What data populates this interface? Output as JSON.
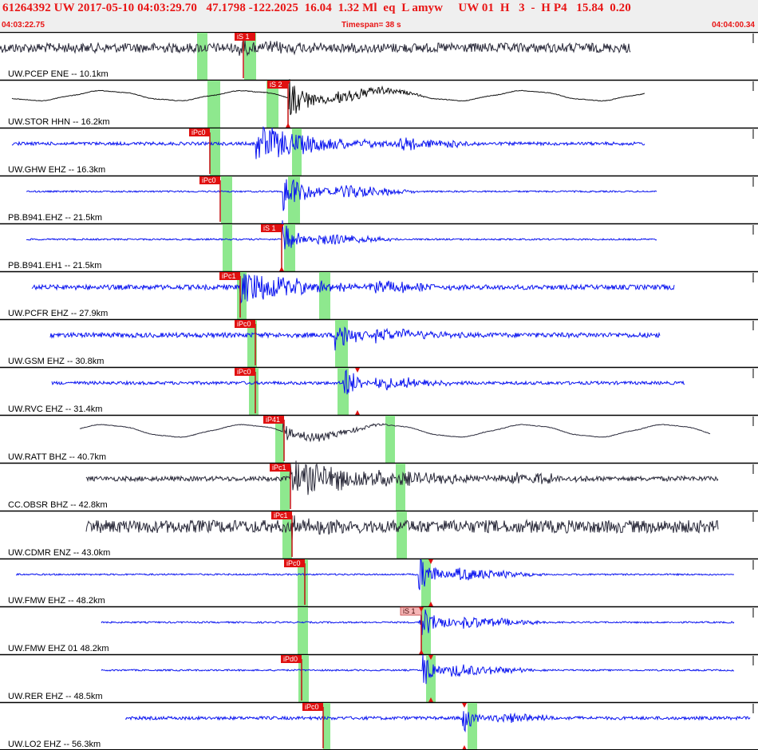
{
  "header": {
    "title": "61264392 UW 2017-05-10 04:03:29.70   47.1798 -122.2025  16.04  1.32 Ml  eq  L amyw     UW 01  H   3  -  H P4   15.84  0.20",
    "start_time": "04:03:22.75",
    "timespan": "Timespan=  38 s",
    "end_time": "04:04:00.34"
  },
  "colors": {
    "header_text": "#e81515",
    "pick_box": "#e01010",
    "pick_box_light": "#f6b6b6",
    "window": "#8ee88e",
    "trace_blue": "#0a14f0",
    "trace_dark": "#2a2a3a"
  },
  "traces": [
    {
      "label": "UW.PCEP ENE -- 10.1km",
      "color": "dark",
      "start": 0,
      "end": 790,
      "amp": 6,
      "noise": true,
      "windows": [
        [
          247,
          260
        ],
        [
          306,
          321
        ]
      ],
      "picks": [
        {
          "x": 320,
          "label": "iS 1",
          "wide": true
        }
      ],
      "arrival": 305,
      "event": [
        300,
        330
      ],
      "event_amp": 12
    },
    {
      "label": "UW.STOR HHN -- 16.2km",
      "color": "black",
      "start": 15,
      "end": 808,
      "amp": 4,
      "noise": false,
      "windows": [
        [
          260,
          276
        ],
        [
          334,
          349
        ]
      ],
      "picks": [
        {
          "x": 361,
          "label": "iS 2",
          "wide": true,
          "tri": true
        }
      ],
      "arrival": 361,
      "event": [
        362,
        420
      ],
      "event_amp": 26
    },
    {
      "label": "UW.GHW EHZ -- 16.3km",
      "color": "blue",
      "start": 15,
      "end": 808,
      "amp": 2,
      "noise": true,
      "windows": [
        [
          263,
          276
        ],
        [
          366,
          378
        ]
      ],
      "picks": [
        {
          "x": 263,
          "label": "iPc0",
          "wide": false
        }
      ],
      "arrival": 263,
      "event": [
        320,
        500
      ],
      "event_amp": 24
    },
    {
      "label": "PB.B941.EHZ -- 21.5km",
      "color": "blue",
      "start": 33,
      "end": 823,
      "amp": 1,
      "noise": true,
      "windows": [
        [
          277,
          291
        ],
        [
          361,
          376
        ]
      ],
      "picks": [
        {
          "x": 276,
          "label": "iPc0",
          "wide": false
        }
      ],
      "arrival": 276,
      "event": [
        355,
        420
      ],
      "event_amp": 26
    },
    {
      "label": "PB.B941.EH1 -- 21.5km",
      "color": "blue",
      "start": 33,
      "end": 823,
      "amp": 1,
      "noise": true,
      "windows": [
        [
          279,
          291
        ],
        [
          356,
          370
        ]
      ],
      "picks": [
        {
          "x": 353,
          "label": "iS 1",
          "wide": true,
          "tri": true
        }
      ],
      "arrival": 353,
      "event": [
        354,
        390
      ],
      "event_amp": 24
    },
    {
      "label": "UW.PCFR EHZ -- 27.9km",
      "color": "blue",
      "start": 40,
      "end": 845,
      "amp": 3,
      "noise": true,
      "windows": [
        [
          297,
          309
        ],
        [
          400,
          414
        ]
      ],
      "picks": [
        {
          "x": 301,
          "label": "iPc1",
          "wide": false
        }
      ],
      "arrival": 301,
      "event": [
        300,
        470
      ],
      "event_amp": 22
    },
    {
      "label": "UW.GSM EHZ -- 30.8km",
      "color": "blue",
      "start": 63,
      "end": 827,
      "amp": 3,
      "noise": true,
      "windows": [
        [
          310,
          322
        ],
        [
          420,
          436
        ]
      ],
      "picks": [
        {
          "x": 320,
          "label": "iPc0",
          "wide": false
        }
      ],
      "arrival": 320,
      "event": [
        420,
        470
      ],
      "event_amp": 22
    },
    {
      "label": "UW.RVC EHZ -- 31.4km",
      "color": "blue",
      "start": 65,
      "end": 858,
      "amp": 2,
      "noise": true,
      "windows": [
        [
          312,
          324
        ],
        [
          423,
          437
        ]
      ],
      "picks": [
        {
          "x": 320,
          "label": "iPc0",
          "wide": false
        },
        {
          "x": 448,
          "label": "",
          "wide": false,
          "tri": true,
          "nobox": true
        }
      ],
      "arrival": 320,
      "event": [
        430,
        470
      ],
      "event_amp": 24
    },
    {
      "label": "UW.RATT BHZ -- 40.7km",
      "color": "dark",
      "start": 100,
      "end": 890,
      "amp": 5,
      "noise": false,
      "windows": [
        [
          345,
          356
        ],
        [
          483,
          495
        ]
      ],
      "picks": [
        {
          "x": 356,
          "label": "iP41",
          "wide": false
        }
      ],
      "arrival": 356,
      "event": [
        355,
        380
      ],
      "event_amp": 18
    },
    {
      "label": "CC.OBSR BHZ -- 42.8km",
      "color": "dark",
      "start": 108,
      "end": 900,
      "amp": 3,
      "noise": true,
      "windows": [
        [
          351,
          363
        ],
        [
          496,
          508
        ]
      ],
      "picks": [
        {
          "x": 364,
          "label": "iPc1",
          "wide": false
        }
      ],
      "arrival": 364,
      "event": [
        364,
        640
      ],
      "event_amp": 22
    },
    {
      "label": "UW.CDMR ENZ -- 43.0km",
      "color": "dark",
      "start": 108,
      "end": 900,
      "amp": 8,
      "noise": true,
      "windows": [
        [
          354,
          366
        ],
        [
          497,
          510
        ]
      ],
      "picks": [
        {
          "x": 366,
          "label": "iPc1",
          "wide": false
        }
      ],
      "arrival": 366,
      "event": [
        366,
        380
      ],
      "event_amp": 12
    },
    {
      "label": "UW.FMW EHZ -- 48.2km",
      "color": "blue",
      "start": 20,
      "end": 920,
      "amp": 1,
      "noise": true,
      "windows": [
        [
          373,
          386
        ],
        [
          528,
          540
        ]
      ],
      "picks": [
        {
          "x": 382,
          "label": "iPc0",
          "wide": false
        },
        {
          "x": 540,
          "label": "",
          "wide": false,
          "tri": true,
          "nobox": true
        }
      ],
      "arrival": 382,
      "event": [
        525,
        570
      ],
      "event_amp": 24
    },
    {
      "label": "UW.FMW EHZ 01 48.2km",
      "color": "blue",
      "start": 127,
      "end": 920,
      "amp": 1,
      "noise": true,
      "windows": [
        [
          373,
          386
        ],
        [
          528,
          540
        ]
      ],
      "picks": [
        {
          "x": 528,
          "label": "iS 1",
          "wide": true,
          "light": true,
          "tri": true
        }
      ],
      "arrival": 528,
      "event": [
        526,
        580
      ],
      "event_amp": 22
    },
    {
      "label": "UW.RER EHZ -- 48.5km",
      "color": "blue",
      "start": 127,
      "end": 920,
      "amp": 1,
      "noise": true,
      "windows": [
        [
          374,
          387
        ],
        [
          534,
          546
        ]
      ],
      "picks": [
        {
          "x": 378,
          "label": "iPd0",
          "wide": false
        },
        {
          "x": 540,
          "label": "",
          "wide": false,
          "tri": true,
          "nobox": true
        }
      ],
      "arrival": 378,
      "event": [
        530,
        565
      ],
      "event_amp": 24
    },
    {
      "label": "UW.LO2 EHZ -- 56.3km",
      "color": "blue",
      "start": 157,
      "end": 940,
      "amp": 2,
      "noise": true,
      "windows": [
        [
          405,
          414
        ],
        [
          586,
          598
        ]
      ],
      "picks": [
        {
          "x": 405,
          "label": "iPc0",
          "wide": false
        },
        {
          "x": 582,
          "label": "",
          "wide": false,
          "tri": true,
          "nobox": true
        }
      ],
      "arrival": 405,
      "event": [
        580,
        610
      ],
      "event_amp": 20
    }
  ]
}
